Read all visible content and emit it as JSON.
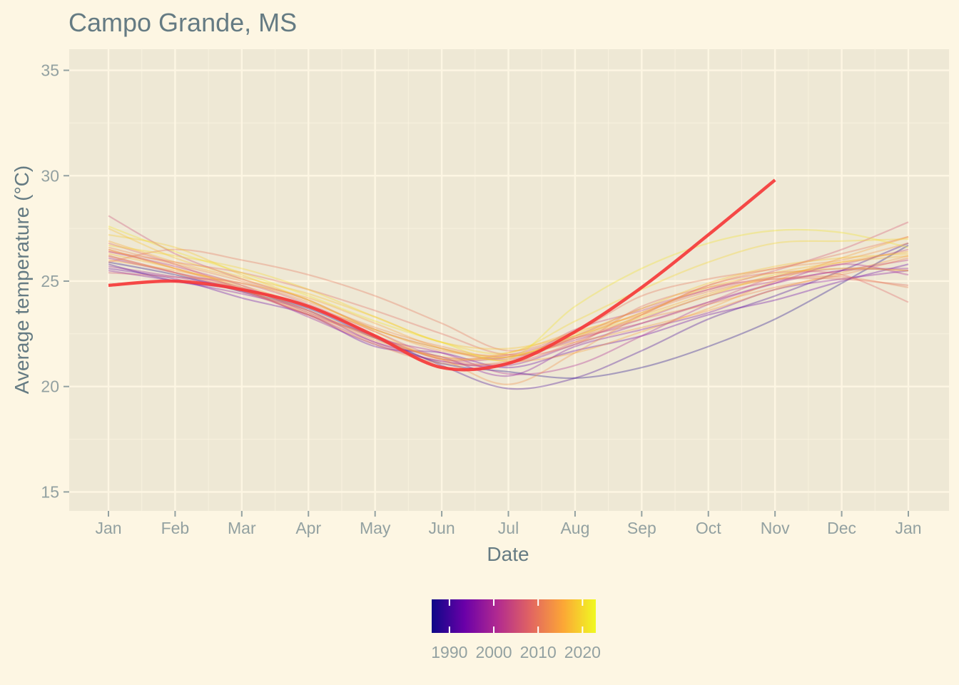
{
  "chart_data": {
    "type": "line",
    "title": "Campo Grande, MS",
    "xlabel": "Date",
    "ylabel": "Average temperature (°C)",
    "x_ticks": [
      "Jan",
      "Feb",
      "Mar",
      "Apr",
      "May",
      "Jun",
      "Jul",
      "Aug",
      "Sep",
      "Oct",
      "Nov",
      "Dec",
      "Jan"
    ],
    "y_ticks": [
      15,
      20,
      25,
      30,
      35
    ],
    "ylim": [
      14.1,
      36.0
    ],
    "grid": true,
    "legend": {
      "type": "colorbar",
      "placement": "bottom",
      "range": [
        1986,
        2023
      ],
      "ticks": [
        1990,
        2000,
        2010,
        2020
      ]
    },
    "colors": {
      "background": "#fdf6e3",
      "panel": "#eee8d5",
      "grid": "#fdf6e3",
      "highlight": "#f53a3a",
      "palette": [
        "#0d0887",
        "#6a00a8",
        "#b12a90",
        "#e16462",
        "#fca636",
        "#f0f921"
      ]
    },
    "series_x_months": [
      0,
      1,
      2,
      3,
      4,
      5,
      6,
      7,
      8,
      9,
      10,
      11,
      12
    ],
    "series": [
      {
        "year": 1987,
        "values": [
          25.9,
          25.3,
          24.5,
          23.7,
          22.3,
          21.1,
          20.7,
          20.4,
          20.9,
          21.9,
          23.2,
          24.9,
          26.7
        ]
      },
      {
        "year": 1990,
        "values": [
          25.8,
          25.0,
          24.6,
          23.8,
          22.4,
          21.0,
          19.9,
          20.4,
          21.7,
          23.2,
          24.3,
          25.5,
          26.8
        ]
      },
      {
        "year": 1993,
        "values": [
          25.6,
          25.1,
          24.2,
          23.4,
          21.9,
          21.6,
          20.9,
          21.7,
          22.4,
          23.4,
          24.1,
          25.0,
          25.8
        ]
      },
      {
        "year": 1996,
        "values": [
          25.5,
          25.0,
          24.4,
          23.6,
          22.1,
          21.4,
          20.5,
          21.9,
          22.7,
          23.5,
          24.6,
          25.1,
          25.5
        ]
      },
      {
        "year": 1998,
        "values": [
          25.7,
          25.2,
          24.6,
          23.3,
          22.0,
          21.2,
          21.0,
          22.0,
          23.0,
          24.0,
          24.9,
          25.5,
          25.6
        ]
      },
      {
        "year": 2000,
        "values": [
          26.1,
          25.4,
          24.7,
          23.6,
          22.3,
          21.6,
          20.6,
          21.0,
          22.4,
          23.9,
          24.9,
          25.8,
          25.3
        ]
      },
      {
        "year": 2002,
        "values": [
          26.4,
          25.7,
          24.8,
          23.5,
          22.4,
          21.3,
          21.4,
          22.2,
          23.2,
          24.3,
          25.0,
          25.5,
          26.0
        ]
      },
      {
        "year": 2004,
        "values": [
          26.2,
          25.4,
          24.5,
          23.4,
          22.1,
          21.2,
          21.1,
          22.7,
          23.6,
          24.6,
          25.2,
          25.6,
          25.5
        ]
      },
      {
        "year": 2005,
        "values": [
          28.1,
          26.3,
          25.1,
          24.1,
          22.7,
          21.8,
          21.3,
          22.3,
          23.0,
          24.0,
          25.2,
          25.8,
          26.5
        ]
      },
      {
        "year": 2006,
        "values": [
          25.4,
          25.2,
          24.9,
          23.9,
          22.6,
          21.4,
          21.5,
          22.4,
          23.7,
          24.6,
          25.5,
          26.5,
          27.8
        ]
      },
      {
        "year": 2008,
        "values": [
          26.8,
          25.8,
          24.6,
          23.4,
          22.4,
          21.3,
          21.1,
          22.1,
          23.4,
          24.8,
          25.4,
          25.3,
          24.0
        ]
      },
      {
        "year": 2009,
        "values": [
          26.4,
          25.9,
          25.4,
          24.6,
          23.6,
          22.5,
          21.5,
          22.0,
          23.8,
          24.7,
          25.1,
          25.1,
          24.8
        ]
      },
      {
        "year": 2010,
        "values": [
          25.9,
          26.5,
          26.0,
          25.3,
          24.3,
          23.0,
          21.7,
          22.6,
          24.3,
          25.1,
          25.6,
          26.3,
          27.1
        ]
      },
      {
        "year": 2011,
        "values": [
          26.5,
          25.6,
          24.6,
          23.4,
          22.0,
          21.1,
          21.2,
          22.3,
          23.5,
          24.5,
          25.1,
          25.2,
          24.7
        ]
      },
      {
        "year": 2012,
        "values": [
          26.6,
          25.8,
          25.0,
          24.0,
          22.8,
          21.9,
          21.4,
          22.3,
          23.2,
          23.9,
          24.7,
          25.3,
          26.1
        ]
      },
      {
        "year": 2013,
        "values": [
          26.2,
          25.4,
          24.6,
          23.5,
          22.2,
          21.3,
          20.1,
          21.6,
          23.4,
          24.8,
          25.6,
          26.0,
          26.8
        ]
      },
      {
        "year": 2014,
        "values": [
          26.5,
          25.6,
          24.8,
          23.8,
          22.7,
          21.7,
          21.5,
          22.1,
          22.8,
          23.6,
          24.6,
          25.4,
          26.2
        ]
      },
      {
        "year": 2015,
        "values": [
          26.0,
          25.5,
          24.9,
          24.2,
          23.0,
          21.8,
          21.2,
          21.6,
          22.6,
          23.7,
          25.0,
          26.1,
          27.1
        ]
      },
      {
        "year": 2016,
        "values": [
          26.9,
          25.9,
          25.1,
          24.1,
          22.6,
          21.3,
          21.6,
          22.6,
          23.4,
          24.4,
          25.2,
          25.9,
          26.4
        ]
      },
      {
        "year": 2017,
        "values": [
          26.3,
          25.6,
          24.7,
          23.6,
          22.3,
          21.4,
          21.4,
          22.4,
          23.5,
          24.7,
          25.4,
          25.9,
          26.2
        ]
      },
      {
        "year": 2018,
        "values": [
          27.5,
          26.1,
          25.2,
          24.4,
          23.3,
          22.1,
          21.8,
          22.5,
          23.7,
          24.9,
          25.7,
          26.1,
          26.3
        ]
      },
      {
        "year": 2019,
        "values": [
          27.2,
          26.6,
          25.3,
          24.1,
          22.7,
          21.8,
          21.4,
          22.4,
          23.3,
          24.3,
          25.3,
          25.6,
          25.5
        ]
      },
      {
        "year": 2020,
        "values": [
          26.7,
          26.2,
          25.6,
          24.6,
          23.3,
          22.1,
          21.6,
          23.1,
          24.6,
          25.9,
          26.8,
          26.9,
          27.0
        ]
      },
      {
        "year": 2021,
        "values": [
          27.6,
          26.4,
          25.4,
          24.3,
          23.1,
          22.1,
          21.3,
          23.8,
          25.6,
          26.8,
          27.4,
          27.3,
          26.6
        ]
      },
      {
        "year": 2023,
        "highlight": true,
        "values": [
          24.8,
          25.0,
          24.6,
          23.8,
          22.4,
          20.9,
          21.1,
          22.6,
          24.7,
          27.2,
          29.8
        ]
      }
    ]
  }
}
